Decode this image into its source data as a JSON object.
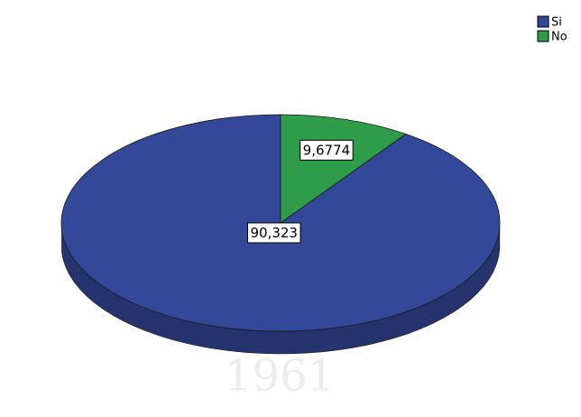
{
  "chart_data": {
    "type": "pie",
    "categories": [
      "Si",
      "No"
    ],
    "values": [
      90.323,
      9.6774
    ],
    "value_labels": [
      "90,323",
      "9,6774"
    ],
    "colors": [
      "#34489a",
      "#2e9c48"
    ],
    "legend": "top-right",
    "watermark": "1961"
  }
}
